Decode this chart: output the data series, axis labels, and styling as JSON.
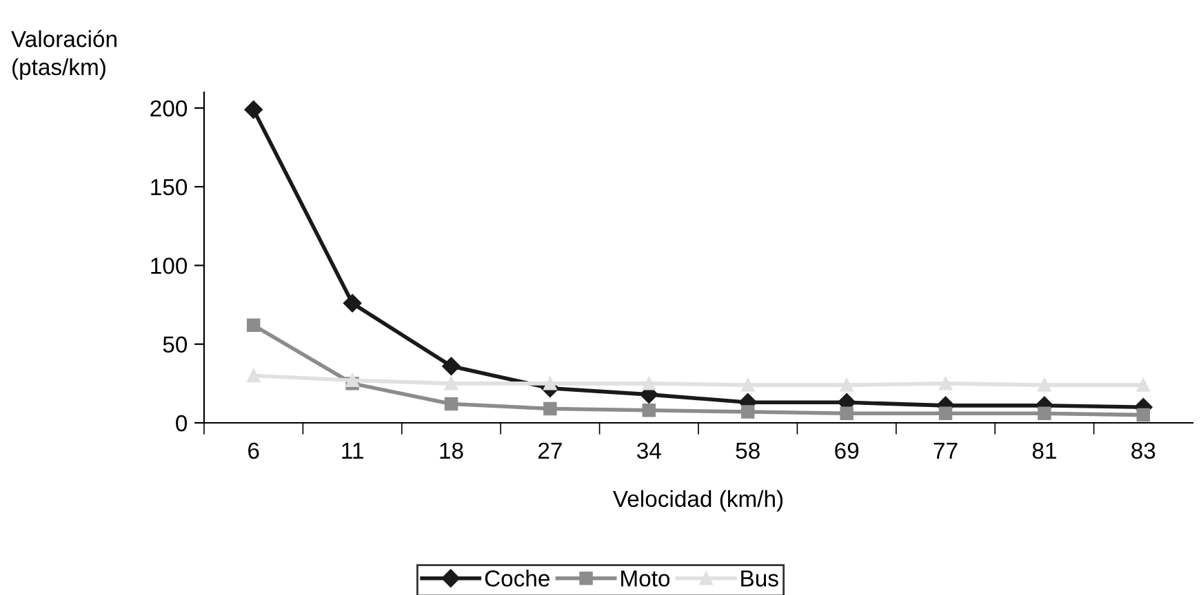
{
  "chart_data": {
    "type": "line",
    "ylabel": "Valoración\n(ptas/km)",
    "xlabel": "Velocidad (km/h)",
    "categories": [
      "6",
      "11",
      "18",
      "27",
      "34",
      "58",
      "69",
      "77",
      "81",
      "83"
    ],
    "series": [
      {
        "name": "Coche",
        "color": "#1a1a1a",
        "marker": "diamond",
        "values": [
          199,
          76,
          36,
          22,
          18,
          13,
          13,
          11,
          11,
          10
        ]
      },
      {
        "name": "Moto",
        "color": "#8c8c8c",
        "marker": "square",
        "values": [
          62,
          25,
          12,
          9,
          8,
          7,
          6,
          6,
          6,
          5
        ]
      },
      {
        "name": "Bus",
        "color": "#e0e0e0",
        "marker": "triangle",
        "values": [
          30,
          27,
          25,
          25,
          25,
          24,
          24,
          25,
          24,
          24
        ]
      }
    ],
    "ylim": [
      0,
      210
    ],
    "yticks": [
      0,
      50,
      100,
      150,
      200
    ],
    "grid": false,
    "legend": "bottom",
    "line_style": "solid"
  }
}
